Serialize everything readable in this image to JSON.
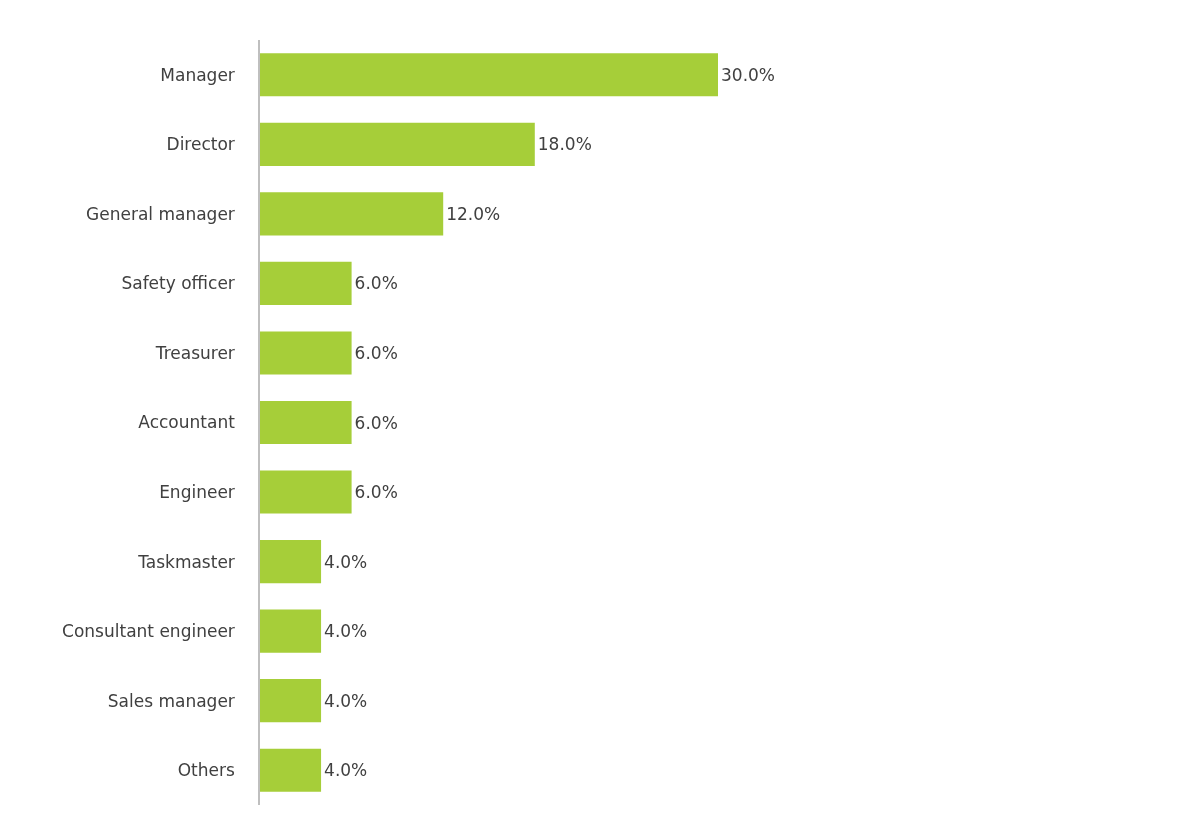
{
  "chart_data": {
    "type": "bar",
    "orientation": "horizontal",
    "categories": [
      "Manager",
      "Director",
      "General manager",
      "Safety officer",
      "Treasurer",
      "Accountant",
      "Engineer",
      "Taskmaster",
      "Consultant engineer",
      "Sales manager",
      "Others"
    ],
    "values": [
      30,
      18,
      12,
      6,
      6,
      6,
      6,
      4,
      4,
      4,
      4
    ],
    "value_labels": [
      "30.0%",
      "18.0%",
      "12.0%",
      "6.0%",
      "6.0%",
      "6.0%",
      "6.0%",
      "4.0%",
      "4.0%",
      "4.0%",
      "4.0%"
    ],
    "color": "#a6ce39",
    "legend": false
  }
}
